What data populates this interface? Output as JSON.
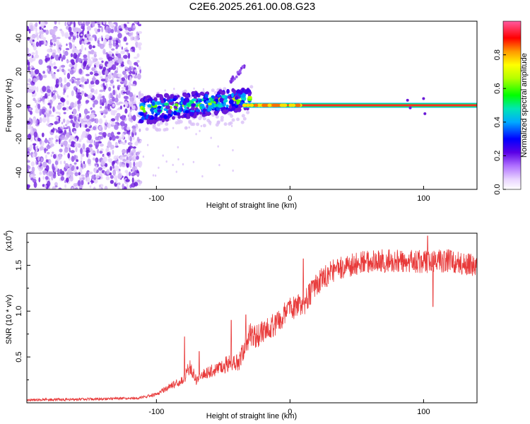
{
  "title": "C2E6.2025.261.00.08.G23",
  "chart_data": [
    {
      "type": "heatmap",
      "name": "spectrogram",
      "xlabel": "Height of straight line (km)",
      "ylabel": "Frequency (Hz)",
      "xlim": [
        -197,
        140
      ],
      "ylim": [
        -50,
        50
      ],
      "xticks": [
        -100,
        0,
        100
      ],
      "xtick_labels": [
        "-100",
        "0",
        "100"
      ],
      "yticks": [
        -40,
        -20,
        0,
        20,
        40
      ],
      "ytick_labels": [
        "-40",
        "-20",
        "0",
        "20",
        "40"
      ],
      "description_regions": [
        {
          "x_range": [
            -197,
            -113
          ],
          "freq_range": [
            -50,
            50
          ],
          "amplitude": "low (0.1-0.2), scattered noise"
        },
        {
          "x_range": [
            -113,
            -30
          ],
          "freq_range": [
            -15,
            10
          ],
          "amplitude": "0.2-0.6, broadened carrier"
        },
        {
          "x_range": [
            -45,
            -35
          ],
          "freq_range": [
            15,
            25
          ],
          "amplitude": "0.2, spur"
        },
        {
          "x_range": [
            -30,
            140
          ],
          "freq_range": [
            0,
            0
          ],
          "amplitude": "1.0, narrow carrier line"
        }
      ],
      "colorbar": {
        "label": "Normalized spectral amplitude",
        "range": [
          0,
          1
        ],
        "ticks": [
          0.0,
          0.2,
          0.4,
          0.6,
          0.8
        ],
        "tick_labels": [
          "0.0",
          "0.2",
          "0.4",
          "0.6",
          "0.8"
        ]
      }
    },
    {
      "type": "line",
      "name": "snr",
      "xlabel": "Height of straight line (km)",
      "ylabel": "SNR (10 * v/v)",
      "scale_label": "(x10",
      "scale_exponent": "4",
      "xlim": [
        -197,
        140
      ],
      "ylim": [
        0,
        18500
      ],
      "xticks": [
        -100,
        0,
        100
      ],
      "xtick_labels": [
        "-100",
        "0",
        "100"
      ],
      "yticks": [
        5000,
        10000,
        15000
      ],
      "ytick_labels": [
        "0.5",
        "1.0",
        "1.5"
      ],
      "color": "#e83a3a",
      "profile": {
        "x": [
          -197,
          -150,
          -115,
          -100,
          -90,
          -80,
          -75,
          -70,
          -65,
          -55,
          -45,
          -38,
          -30,
          -25,
          -20,
          -10,
          0,
          10,
          20,
          30,
          40,
          60,
          80,
          100,
          120,
          140
        ],
        "y": [
          300,
          400,
          500,
          900,
          1800,
          2400,
          4000,
          2400,
          3200,
          3600,
          4400,
          4400,
          7500,
          7200,
          7800,
          8700,
          10300,
          10700,
          13000,
          14200,
          14900,
          15400,
          15500,
          15400,
          15500,
          15000
        ]
      },
      "spikes": [
        {
          "x": -79,
          "y": 7200
        },
        {
          "x": -68,
          "y": 5600
        },
        {
          "x": -44,
          "y": 9000
        },
        {
          "x": -33,
          "y": 9600
        },
        {
          "x": 10,
          "y": 15700
        },
        {
          "x": 103,
          "y": 18200
        },
        {
          "x": 107,
          "y": 10500
        }
      ],
      "noise_amplitude": 1300,
      "seed": 23
    }
  ],
  "colors": {
    "scatter_low": "#c9a8f5",
    "scatter_mid": "#7a2ee0",
    "carrier": "#ff3030",
    "snr_line": "#e83a3a"
  }
}
